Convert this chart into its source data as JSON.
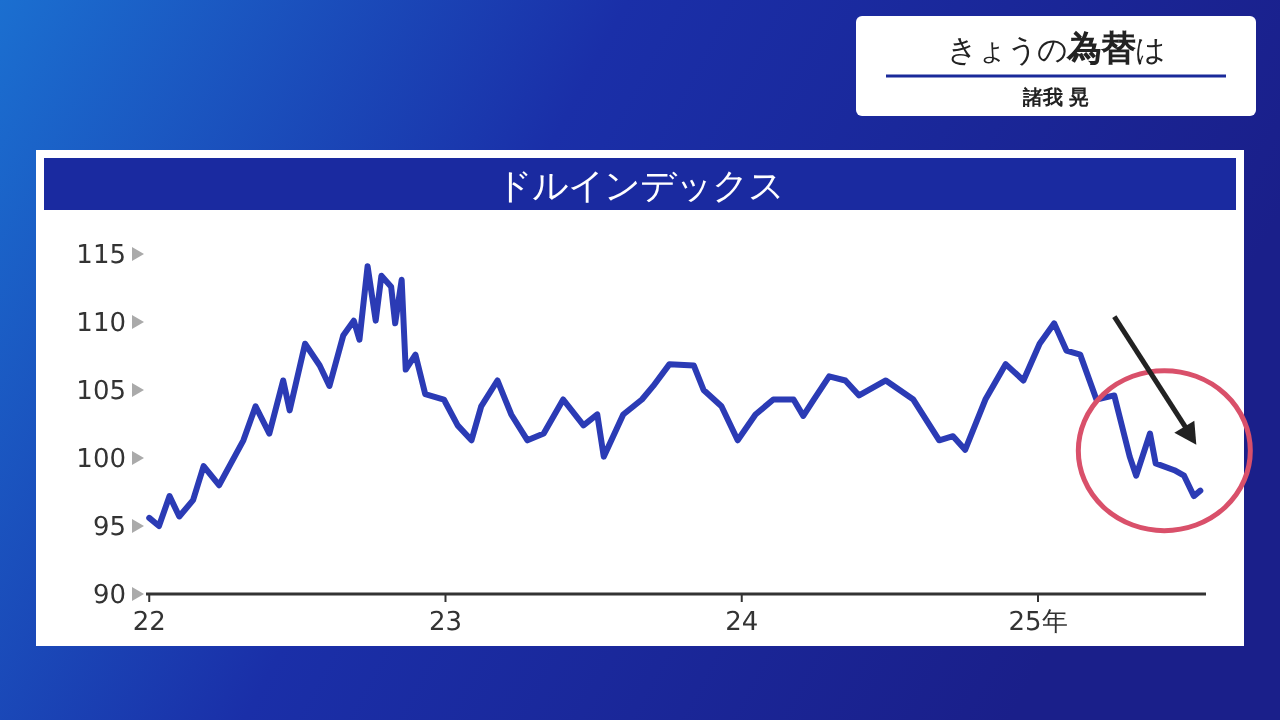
{
  "chart_data": {
    "type": "line",
    "title": "ドルインデックス",
    "annotations": [
      "きょうの**為替**は",
      "諸我 晃"
    ],
    "x": [
      "2022-01-01",
      "2022-01-13",
      "2022-01-26",
      "2022-02-07",
      "2022-02-24",
      "2022-03-09",
      "2022-03-28",
      "2022-04-27",
      "2022-05-12",
      "2022-05-29",
      "2022-06-15",
      "2022-06-23",
      "2022-07-12",
      "2022-07-30",
      "2022-08-11",
      "2022-08-28",
      "2022-09-10",
      "2022-09-17",
      "2022-09-27",
      "2022-10-07",
      "2022-10-14",
      "2022-10-26",
      "2022-10-31",
      "2022-11-08",
      "2022-11-13",
      "2022-11-25",
      "2022-12-07",
      "2022-12-30",
      "2023-01-16",
      "2023-02-02",
      "2023-02-14",
      "2023-03-06",
      "2023-03-23",
      "2023-04-12",
      "2023-05-02",
      "2023-05-26",
      "2023-06-20",
      "2023-07-07",
      "2023-07-15",
      "2023-08-08",
      "2023-08-31",
      "2023-09-14",
      "2023-10-04",
      "2023-11-03",
      "2023-11-15",
      "2023-12-07",
      "2023-12-27",
      "2024-01-18",
      "2024-02-09",
      "2024-03-05",
      "2024-03-17",
      "2024-03-30",
      "2024-04-18",
      "2024-05-08",
      "2024-05-25",
      "2024-06-27",
      "2024-07-31",
      "2024-09-01",
      "2024-09-18",
      "2024-10-03",
      "2024-10-28",
      "2024-11-22",
      "2024-12-14",
      "2025-01-03",
      "2025-01-21",
      "2025-02-05",
      "2025-02-22",
      "2025-03-14",
      "2025-04-05",
      "2025-04-24",
      "2025-05-02",
      "2025-05-19",
      "2025-05-26",
      "2025-06-18",
      "2025-06-30",
      "2025-07-12",
      "2025-07-20"
    ],
    "series": [
      {
        "color": "#2b3bb5",
        "values": [
          95.6,
          95.0,
          97.2,
          95.7,
          96.9,
          99.4,
          98.0,
          101.3,
          103.8,
          101.8,
          105.7,
          103.5,
          108.4,
          106.8,
          105.3,
          109.0,
          110.1,
          108.7,
          114.1,
          110.1,
          113.4,
          112.6,
          109.9,
          113.1,
          106.5,
          107.6,
          104.7,
          104.3,
          102.4,
          101.3,
          103.8,
          105.7,
          103.2,
          101.3,
          101.8,
          104.3,
          102.4,
          103.2,
          100.1,
          103.2,
          104.3,
          105.3,
          106.9,
          106.8,
          105.0,
          103.8,
          101.3,
          103.2,
          104.3,
          104.3,
          103.1,
          104.3,
          106.0,
          105.7,
          104.6,
          105.7,
          104.3,
          101.3,
          101.6,
          100.6,
          104.3,
          106.9,
          105.7,
          108.4,
          109.9,
          107.9,
          107.6,
          104.3,
          104.6,
          100.1,
          98.7,
          101.8,
          99.6,
          99.1,
          98.7,
          97.2,
          97.6
        ]
      }
    ],
    "xlim": [
      "2021-12-28",
      "2025-07-27"
    ],
    "xticks": [
      {
        "value": "2022-01-01",
        "label": "22"
      },
      {
        "value": "2023-01-01",
        "label": "23"
      },
      {
        "value": "2024-01-01",
        "label": "24"
      },
      {
        "value": "2025-01-01",
        "label": "25年"
      }
    ],
    "ylim": [
      90,
      115
    ],
    "yticks": [
      90,
      95,
      100,
      105,
      110,
      115
    ],
    "grid": false,
    "marker": "none",
    "line_style": "solid"
  }
}
